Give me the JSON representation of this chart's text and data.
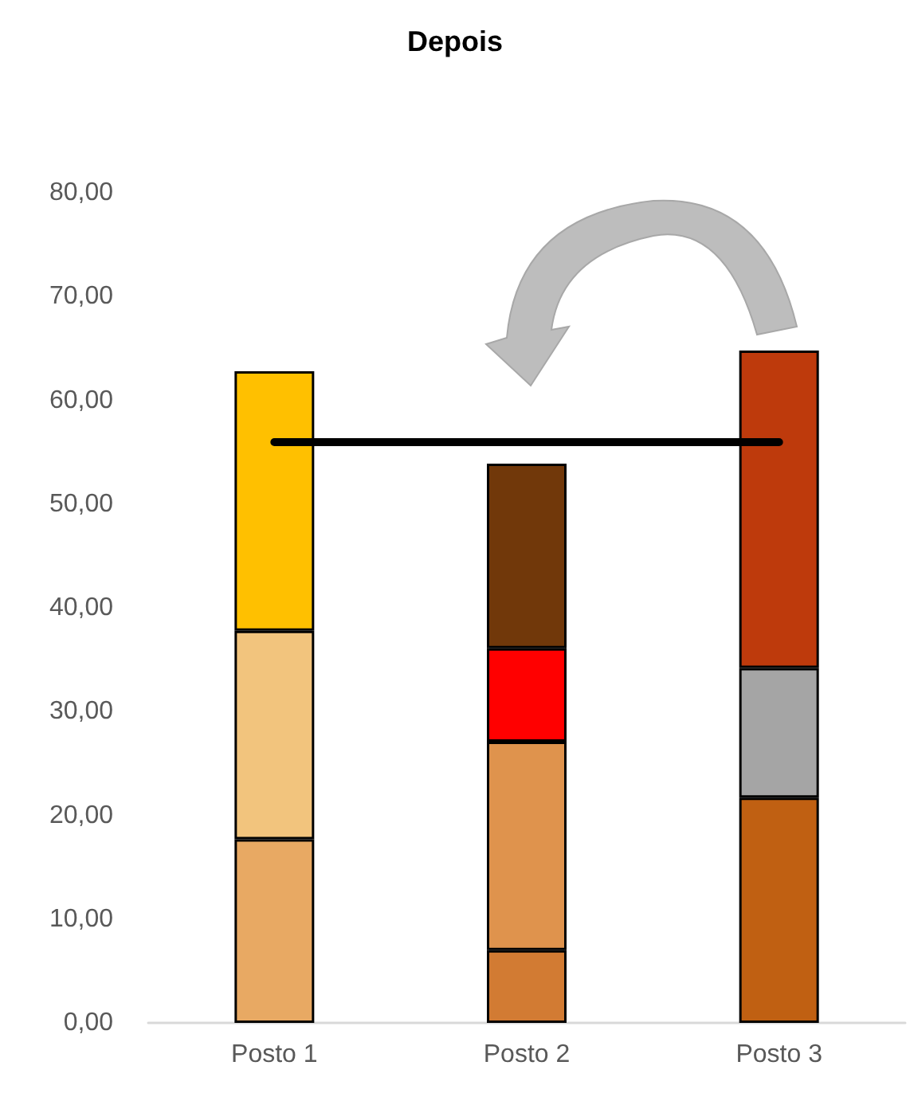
{
  "chart_data": {
    "type": "bar",
    "title": "Depois",
    "stacked": true,
    "categories": [
      "Posto 1",
      "Posto 2",
      "Posto 3"
    ],
    "series": [
      {
        "colors": [
          "#e8a963",
          "#d27b33",
          "#c06012"
        ],
        "values": [
          17.7,
          7.0,
          21.7
        ]
      },
      {
        "colors": [
          "#f2c47d",
          "#df934d",
          "#a5a5a5"
        ],
        "values": [
          20.1,
          20.1,
          12.5
        ]
      },
      {
        "colors": [
          "#ffc000",
          "#ff0000",
          "#be3a0c"
        ],
        "values": [
          25.0,
          9.0,
          30.6
        ]
      },
      {
        "color": "#71380a",
        "values": [
          null,
          17.8,
          null
        ]
      }
    ],
    "ylim": [
      0,
      80
    ],
    "yticks": [
      {
        "value": 0,
        "label": "0,00"
      },
      {
        "value": 10,
        "label": "10,00"
      },
      {
        "value": 20,
        "label": "20,00"
      },
      {
        "value": 30,
        "label": "30,00"
      },
      {
        "value": 40,
        "label": "40,00"
      },
      {
        "value": 50,
        "label": "50,00"
      },
      {
        "value": 60,
        "label": "60,00"
      },
      {
        "value": 70,
        "label": "70,00"
      },
      {
        "value": 80,
        "label": "80,00"
      }
    ],
    "ref_lines": [
      {
        "axis": "y",
        "value": 56.0,
        "color": "#000000"
      }
    ],
    "grid": false
  }
}
